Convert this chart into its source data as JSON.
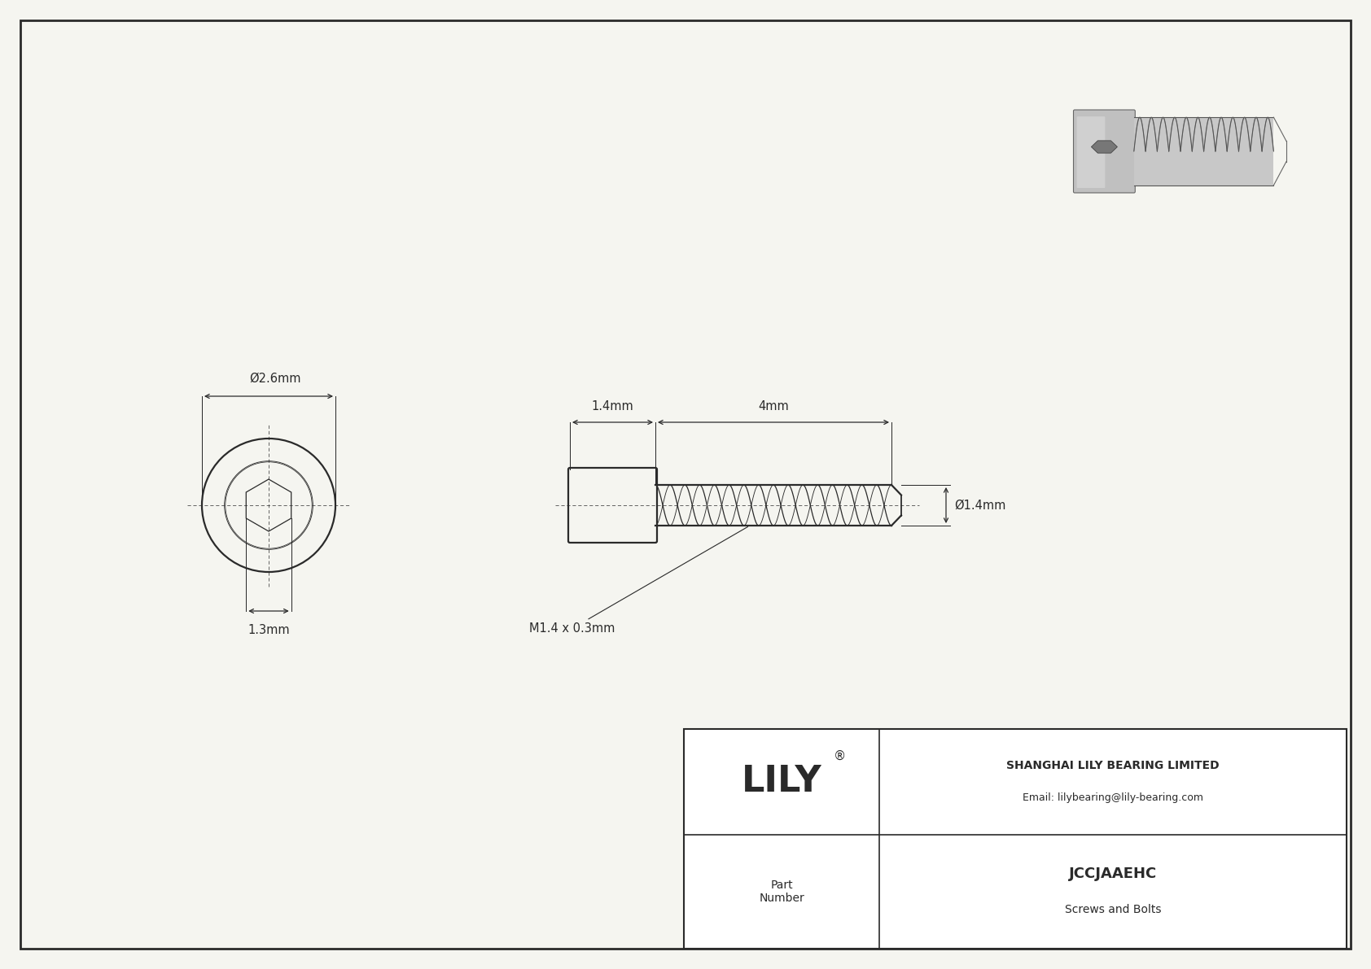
{
  "bg_color": "#f0f0f0",
  "line_color": "#2a2a2a",
  "drawing_bg": "#f5f5f0",
  "border_color": "#333333",
  "title_company": "SHANGHAI LILY BEARING LIMITED",
  "title_email": "Email: lilybearing@lily-bearing.com",
  "part_number": "JCCJAAEHC",
  "part_category": "Screws and Bolts",
  "part_label": "Part\nNumber",
  "logo_text": "LILY",
  "logo_sup": "®",
  "dim_outer_dia": "Ø2.6mm",
  "dim_head_len": "1.4mm",
  "dim_thread_len": "4mm",
  "dim_thread_dia": "Ø1.4mm",
  "dim_hex_size": "1.3mm",
  "dim_thread_spec": "M1.4 x 0.3mm"
}
